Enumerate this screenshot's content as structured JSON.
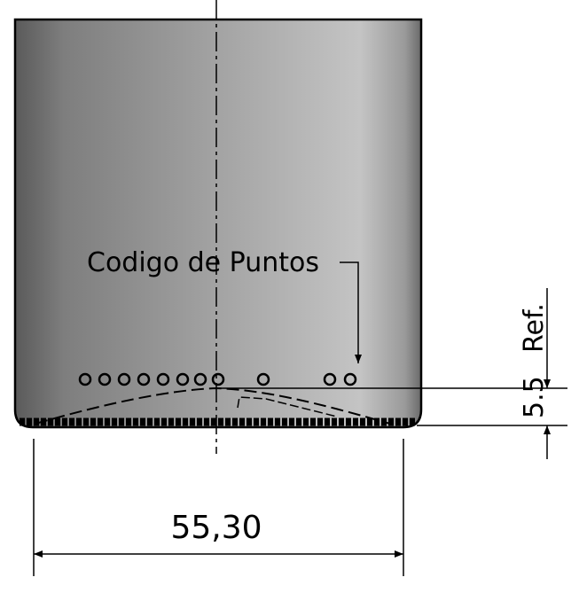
{
  "annotations": {
    "callout": "Codigo de Puntos",
    "height_value": "5.5",
    "height_note": "Ref.",
    "width_value": "55,30"
  }
}
